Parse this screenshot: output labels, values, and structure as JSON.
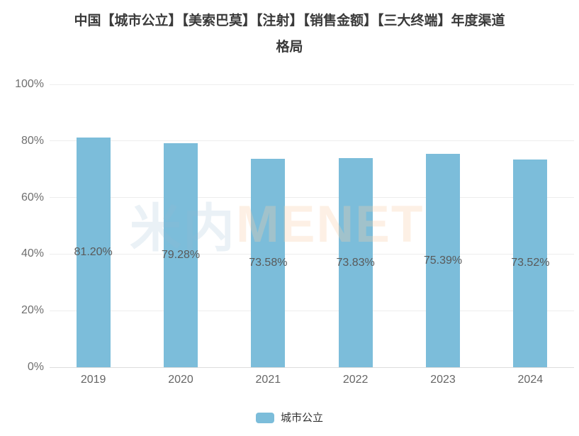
{
  "title": {
    "line1": "中国【城市公立】【美索巴莫】【注射】【销售金额】【三大终端】年度渠道",
    "line2": "格局"
  },
  "watermark": {
    "cn": "米内",
    "en": "MENET",
    "cn_color": "#96B9D233",
    "en_color": "#FACDAA4D"
  },
  "legend": {
    "label": "城市公立",
    "swatch_color": "#7cbdda"
  },
  "chart_data": {
    "type": "bar",
    "title": "中国【城市公立】【美索巴莫】【注射】【销售金额】【三大终端】年度渠道格局",
    "categories": [
      "2019",
      "2020",
      "2021",
      "2022",
      "2023",
      "2024"
    ],
    "series": [
      {
        "name": "城市公立",
        "values": [
          81.2,
          79.28,
          73.58,
          73.83,
          75.39,
          73.52
        ]
      }
    ],
    "value_labels": [
      "81.20%",
      "79.28%",
      "73.58%",
      "73.83%",
      "75.39%",
      "73.52%"
    ],
    "xlabel": "",
    "ylabel": "",
    "ylim": [
      0,
      100
    ],
    "y_tick_values": [
      0,
      20,
      40,
      60,
      80,
      100
    ],
    "y_tick_labels": [
      "0%",
      "20%",
      "40%",
      "60%",
      "80%",
      "100%"
    ],
    "grid": true,
    "legend_position": "bottom",
    "bar_color": "#7cbdda",
    "label_position": "bar-middle"
  }
}
